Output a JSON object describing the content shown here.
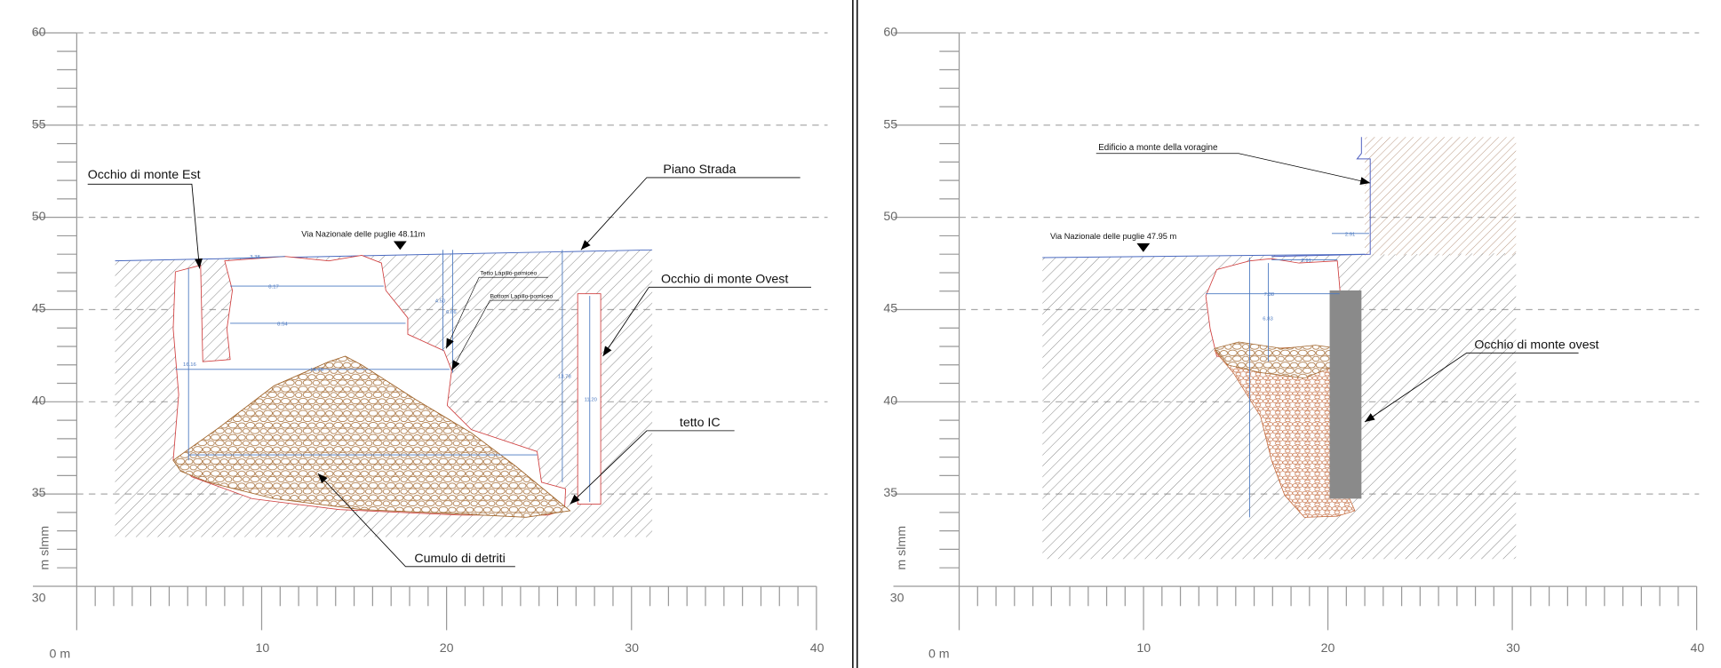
{
  "left_panel": {
    "y_axis_label": "m slmm",
    "y_ticks": [
      "60",
      "55",
      "50",
      "45",
      "40",
      "35",
      "30"
    ],
    "x_ticks": [
      "0 m",
      "10",
      "20",
      "30",
      "40"
    ],
    "labels": {
      "occhio_est": "Occhio di monte Est",
      "piano_strada": "Piano Strada",
      "via_nazionale": "Via Nazionale delle puglie 48.11m",
      "tetto_lapillo": "Tetto Lapillo-pomiceo",
      "bottom_lapillo": "Bottom Lapillo-pomiceo",
      "occhio_ovest": "Occhio di monte Ovest",
      "tetto_ic": "tetto IC",
      "cumulo": "Cumulo di detriti"
    },
    "dimensions": [
      "3.38",
      "8.17",
      "8.54",
      "14.70",
      "16.16",
      "4.50",
      "6.66",
      "13.78",
      "11.20"
    ]
  },
  "right_panel": {
    "y_axis_label": "m slmm",
    "y_ticks": [
      "60",
      "55",
      "50",
      "45",
      "40",
      "35",
      "30"
    ],
    "x_ticks": [
      "0 m",
      "10",
      "20",
      "30",
      "40"
    ],
    "labels": {
      "edificio": "Edificio a monte della voragine",
      "via_nazionale": "Via Nazionale delle puglie 47.95 m",
      "occhio_ovest": "Occhio di monte ovest"
    },
    "dimensions": [
      "2.91",
      "2.91",
      "7.38",
      "6.83"
    ]
  },
  "colors": {
    "cavity_outline": "#d04040",
    "dimension": "#4a78c0",
    "debris": "#a0642a",
    "building_hatch": "#b08a70",
    "wall": "#8a8a8a"
  }
}
